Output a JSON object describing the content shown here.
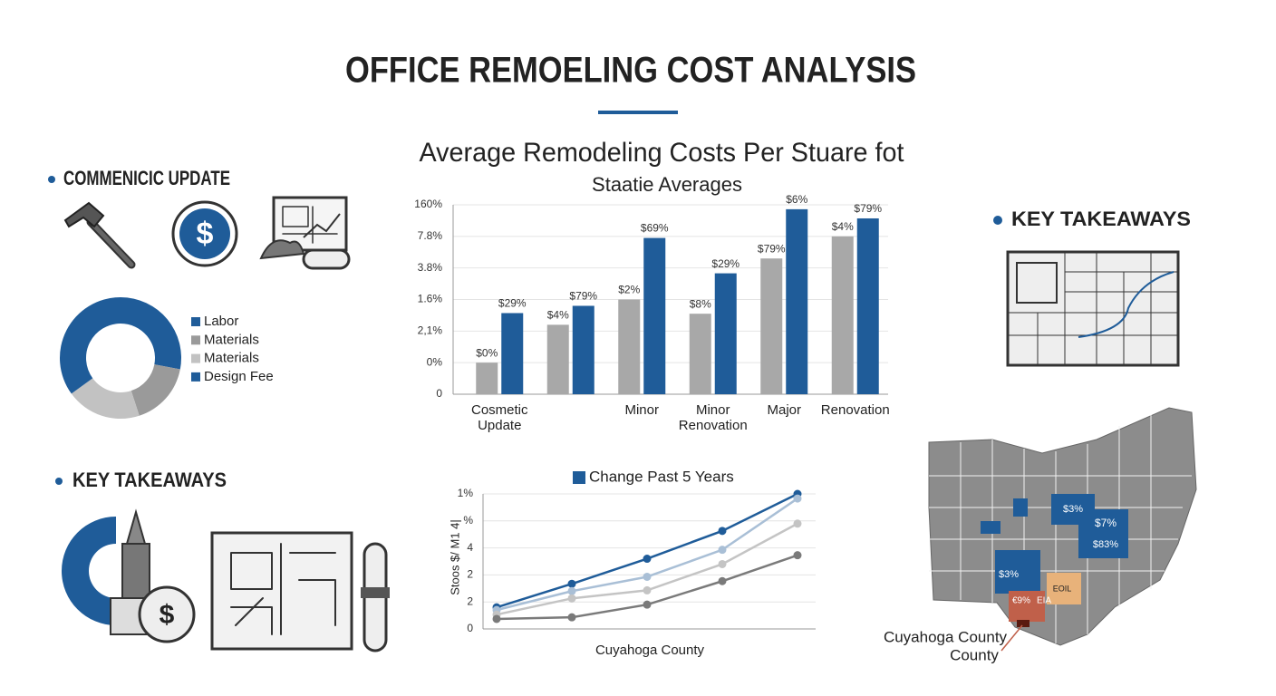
{
  "title": "OFFICE REMOELING COST ANALYSIS",
  "left_top_heading": "COMMENICIC UPDATE",
  "left_bottom_heading": "KEY TAKEAWAYS",
  "right_heading": "KEY TAKEAWAYS",
  "map": {
    "labels": [
      "$3%",
      "$7%",
      "$83%",
      "$3%",
      "EOIL",
      "€9%",
      "EIA",
      "Cuyahoga County",
      "County"
    ]
  },
  "chart_data": [
    {
      "type": "bar",
      "title": "Average Remodeling Costs Per Stuare fot",
      "subtitle": "Staatie Averages",
      "categories": [
        "Cosmetic Update",
        null,
        "Minor",
        "Minor Renovation",
        "Major",
        "Renovation"
      ],
      "series": [
        {
          "color": "#a8a8a8",
          "values": [
            1.0,
            2.2,
            3.0,
            2.55,
            4.3,
            5.0
          ],
          "annotations": [
            "$0%",
            "$4%",
            "$2%",
            "$8%",
            "$79%",
            "$4%"
          ]
        },
        {
          "color": "#1f5c99",
          "values": [
            2.57,
            2.8,
            4.95,
            3.83,
            5.86,
            5.57
          ],
          "annotations": [
            "$29%",
            "$79%",
            "$69%",
            "$29%",
            "$6%",
            "$79%"
          ]
        }
      ],
      "ylim": [
        0,
        6
      ],
      "yticks": [
        0,
        {
          "value": 1,
          "label": "0%"
        },
        {
          "value": 2,
          "label": "2,1%"
        },
        {
          "value": 3,
          "label": "1.6%"
        },
        {
          "value": 4,
          "label": "3.8%"
        },
        {
          "value": 5,
          "label": "7.8%"
        },
        {
          "value": 6,
          "label": "160%"
        }
      ],
      "grid": true
    },
    {
      "type": "line",
      "y_label": "Stoos $/ M1 4|",
      "x_label": "Cuyahoga County",
      "categories": [
        null,
        null,
        null,
        null,
        null
      ],
      "series": [
        {
          "name": "Change Past 5 Years",
          "color": "#1f5c99",
          "values": [
            0.8,
            1.67,
            2.6,
            3.63,
            5.0
          ]
        },
        {
          "color": "#a9bfd6",
          "values": [
            0.7,
            1.4,
            1.93,
            2.93,
            4.83
          ]
        },
        {
          "color": "#c4c4c4",
          "values": [
            0.53,
            1.13,
            1.43,
            2.4,
            3.9
          ]
        },
        {
          "color": "#7a7a7a",
          "values": [
            0.37,
            0.43,
            0.9,
            1.77,
            2.73
          ]
        }
      ],
      "ylim": [
        0,
        5
      ],
      "yticks": [
        0,
        {
          "value": 1,
          "label": "2"
        },
        {
          "value": 2,
          "label": "2"
        },
        {
          "value": 3,
          "label": "4"
        },
        {
          "value": 4,
          "label": "%"
        },
        {
          "value": 5,
          "label": "1%"
        }
      ],
      "grid": true
    },
    {
      "type": "pie",
      "donut": true,
      "categories": [
        "Labor",
        "Materials",
        "Materials",
        "Design Fee"
      ],
      "values": [
        28,
        17,
        20,
        35
      ],
      "colors": [
        "#1f5c99",
        "#9a9a9a",
        "#c2c2c2",
        "#1f5c99"
      ]
    }
  ]
}
